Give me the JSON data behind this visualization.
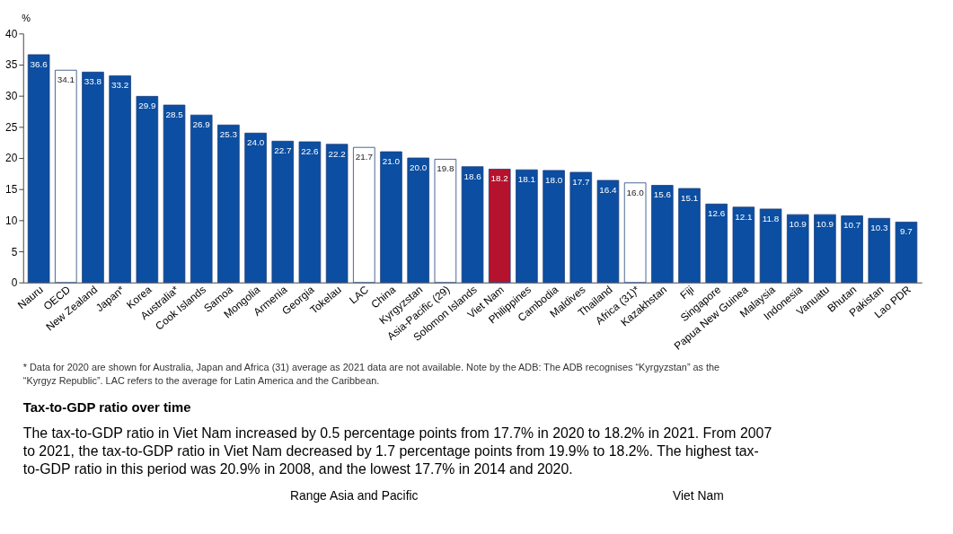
{
  "chart_data": {
    "type": "bar",
    "ylabel": "%",
    "categories": [
      "Nauru",
      "OECD",
      "New Zealand",
      "Japan*",
      "Korea",
      "Australia*",
      "Cook Islands",
      "Samoa",
      "Mongolia",
      "Armenia",
      "Georgia",
      "Tokelau",
      "LAC",
      "China",
      "Kyrgyzstan",
      "Asia-Pacific (29)",
      "Solomon Islands",
      "Viet Nam",
      "Philippines",
      "Cambodia",
      "Maldives",
      "Thailand",
      "Africa (31)*",
      "Kazakhstan",
      "Fiji",
      "Singapore",
      "Papua New Guinea",
      "Malaysia",
      "Indonesia",
      "Vanuatu",
      "Bhutan",
      "Pakistan",
      "Lao PDR"
    ],
    "values": [
      36.6,
      34.1,
      33.8,
      33.2,
      29.9,
      28.5,
      26.9,
      25.3,
      24.0,
      22.7,
      22.6,
      22.2,
      21.7,
      21.0,
      20.0,
      19.8,
      18.6,
      18.2,
      18.1,
      18.0,
      17.7,
      16.4,
      16.0,
      15.6,
      15.1,
      12.6,
      12.1,
      11.8,
      10.9,
      10.9,
      10.7,
      10.3,
      9.7
    ],
    "colors": [
      "#0b4ea2",
      "#ffffff",
      "#0b4ea2",
      "#0b4ea2",
      "#0b4ea2",
      "#0b4ea2",
      "#0b4ea2",
      "#0b4ea2",
      "#0b4ea2",
      "#0b4ea2",
      "#0b4ea2",
      "#0b4ea2",
      "#ffffff",
      "#0b4ea2",
      "#0b4ea2",
      "#ffffff",
      "#0b4ea2",
      "#b5122e",
      "#0b4ea2",
      "#0b4ea2",
      "#0b4ea2",
      "#0b4ea2",
      "#ffffff",
      "#0b4ea2",
      "#0b4ea2",
      "#0b4ea2",
      "#0b4ea2",
      "#0b4ea2",
      "#0b4ea2",
      "#0b4ea2",
      "#0b4ea2",
      "#0b4ea2",
      "#0b4ea2"
    ],
    "ylim": [
      0,
      40
    ],
    "yticks": [
      0,
      5,
      10,
      15,
      20,
      25,
      30,
      35,
      40
    ],
    "grid": false,
    "value_labels": [
      "36.6",
      "34.1",
      "33.8",
      "33.2",
      "29.9",
      "28.5",
      "26.9",
      "25.3",
      "24.0",
      "22.7",
      "22.6",
      "22.2",
      "21.7",
      "21.0",
      "20.0",
      "19.8",
      "18.6",
      "18.2",
      "18.1",
      "18.0",
      "17.7",
      "16.4",
      "16.0",
      "15.6",
      "15.1",
      "12.6",
      "12.1",
      "11.8",
      "10.9",
      "10.9",
      "10.7",
      "10.3",
      "9.7"
    ],
    "annotations": [
      "* Data for 2020 are shown for Australia, Japan and Africa (31) average as 2021 data are not available. Note by the ADB: The ADB recognises “Kyrgyzstan” as the “Kyrgyz Republic”. LAC refers to the average for Latin America and the Caribbean.",
      "Tax-to-GDP ratio over time",
      "The tax-to-GDP ratio in Viet Nam increased by 0.5 percentage points from 17.7% in 2020 to 18.2% in 2021. From 2007 to 2021, the tax-to-GDP ratio in Viet Nam decreased by 1.7 percentage points from 19.9% to 18.2%. The highest tax-to-GDP ratio in this period was 20.9% in 2008, and the lowest 17.7% in 2014 and 2020.",
      "Range Asia and Pacific",
      "Viet Nam"
    ]
  }
}
